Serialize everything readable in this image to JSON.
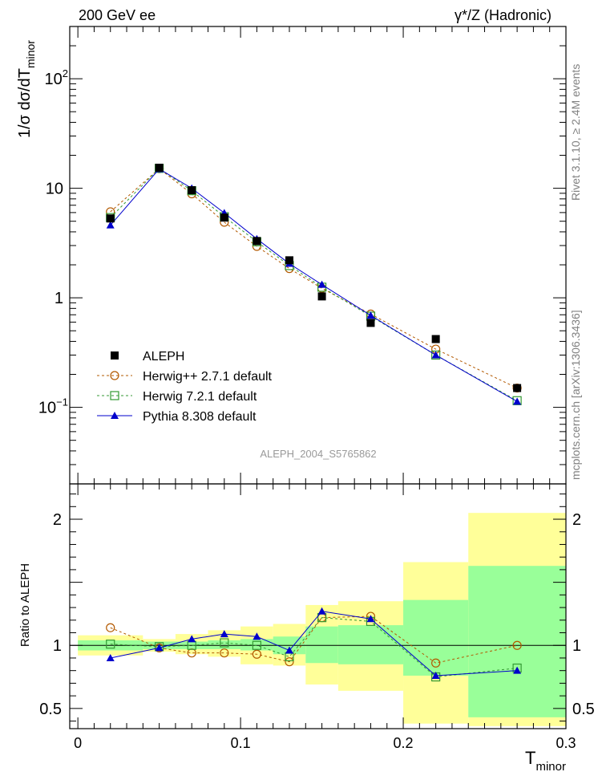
{
  "header": {
    "energy_label": "200 GeV ee",
    "process_label": "γ*/Z (Hadronic)",
    "side_label_top": "Rivet 3.1.10, ≥ 2.4M events",
    "side_label_bottom": "mcplots.cern.ch [arXiv:1306.3436]",
    "analysis_label": "ALEPH_2004_S5765862"
  },
  "chart_data": [
    {
      "type": "scatter",
      "ylabel": "1/σ dσ/dT minor",
      "ylabel_parts": {
        "main": "1/σ  dσ/dT",
        "sub": "minor"
      },
      "yscale": "log",
      "ylim": [
        0.02,
        300
      ],
      "xlim": [
        -0.005,
        0.3
      ],
      "yticks": [
        {
          "v": 0.1,
          "label": "10",
          "sup": "−1"
        },
        {
          "v": 1,
          "label": "1",
          "sup": ""
        },
        {
          "v": 10,
          "label": "10",
          "sup": ""
        },
        {
          "v": 100,
          "label": "10",
          "sup": "2"
        }
      ],
      "legend_position": "lower-left",
      "series": [
        {
          "name": "ALEPH",
          "color": "#000000",
          "marker": "square-filled",
          "line": "none",
          "x": [
            0.02,
            0.05,
            0.07,
            0.09,
            0.11,
            0.13,
            0.15,
            0.18,
            0.22,
            0.27
          ],
          "y": [
            5.3,
            15.4,
            9.6,
            5.4,
            3.3,
            2.2,
            1.03,
            0.59,
            0.42,
            0.15
          ]
        },
        {
          "name": "Herwig++ 2.7.1 default",
          "color": "#b35900",
          "marker": "circle-open",
          "line": "dashed",
          "x": [
            0.02,
            0.05,
            0.07,
            0.09,
            0.11,
            0.13,
            0.15,
            0.18,
            0.22,
            0.27
          ],
          "y": [
            6.1,
            15.1,
            8.9,
            4.9,
            2.95,
            1.85,
            1.22,
            0.71,
            0.34,
            0.15
          ]
        },
        {
          "name": "Herwig 7.2.1 default",
          "color": "#339933",
          "marker": "square-open",
          "line": "dashed",
          "x": [
            0.02,
            0.05,
            0.07,
            0.09,
            0.11,
            0.13,
            0.15,
            0.18,
            0.22,
            0.27
          ],
          "y": [
            5.4,
            15.2,
            9.5,
            5.5,
            3.25,
            1.97,
            1.25,
            0.68,
            0.3,
            0.115
          ]
        },
        {
          "name": "Pythia 8.308 default",
          "color": "#0000cc",
          "marker": "triangle-filled",
          "line": "solid",
          "x": [
            0.02,
            0.05,
            0.07,
            0.09,
            0.11,
            0.13,
            0.15,
            0.18,
            0.22,
            0.27
          ],
          "y": [
            4.6,
            15.0,
            10.0,
            5.95,
            3.45,
            2.05,
            1.32,
            0.69,
            0.3,
            0.113
          ]
        }
      ]
    },
    {
      "type": "scatter",
      "ylabel": "Ratio to ALEPH",
      "xlabel": "T minor",
      "xlabel_parts": {
        "main": "T",
        "sub": "minor"
      },
      "ylim": [
        0.34,
        2.28
      ],
      "xlim": [
        -0.005,
        0.3
      ],
      "xticks": [
        {
          "v": 0,
          "label": "0"
        },
        {
          "v": 0.1,
          "label": "0.1"
        },
        {
          "v": 0.2,
          "label": "0.2"
        },
        {
          "v": 0.3,
          "label": "0.3"
        }
      ],
      "yticks": [
        {
          "v": 0.5,
          "label": "0.5"
        },
        {
          "v": 1,
          "label": "1"
        },
        {
          "v": 2,
          "label": "2"
        }
      ],
      "uncertainty_bands": {
        "bins": [
          [
            0.0,
            0.04
          ],
          [
            0.04,
            0.06
          ],
          [
            0.06,
            0.08
          ],
          [
            0.08,
            0.1
          ],
          [
            0.1,
            0.12
          ],
          [
            0.12,
            0.14
          ],
          [
            0.14,
            0.16
          ],
          [
            0.16,
            0.2
          ],
          [
            0.2,
            0.24
          ],
          [
            0.24,
            0.3
          ]
        ],
        "stat_low": [
          0.96,
          0.97,
          0.97,
          0.97,
          0.96,
          0.93,
          0.86,
          0.85,
          0.76,
          0.43
        ],
        "stat_high": [
          1.04,
          1.03,
          1.03,
          1.04,
          1.05,
          1.07,
          1.15,
          1.16,
          1.36,
          1.63
        ],
        "total_low": [
          0.92,
          0.95,
          0.93,
          0.91,
          0.85,
          0.84,
          0.69,
          0.64,
          0.38,
          0.36
        ],
        "total_high": [
          1.08,
          1.05,
          1.09,
          1.12,
          1.15,
          1.17,
          1.32,
          1.35,
          1.66,
          2.05
        ],
        "stat_color": "#99ff99",
        "total_color": "#ffff99"
      },
      "series": [
        {
          "name": "Herwig++ 2.7.1 default",
          "color": "#b35900",
          "marker": "circle-open",
          "line": "dashed",
          "x": [
            0.02,
            0.05,
            0.07,
            0.09,
            0.11,
            0.13,
            0.15,
            0.18,
            0.22,
            0.27
          ],
          "y": [
            1.14,
            0.98,
            0.94,
            0.94,
            0.93,
            0.87,
            1.22,
            1.23,
            0.86,
            1.0
          ]
        },
        {
          "name": "Herwig 7.2.1 default",
          "color": "#339933",
          "marker": "square-open",
          "line": "dashed",
          "x": [
            0.02,
            0.05,
            0.07,
            0.09,
            0.11,
            0.13,
            0.15,
            0.18,
            0.22,
            0.27
          ],
          "y": [
            1.01,
            0.99,
            1.0,
            1.02,
            1.0,
            0.91,
            1.22,
            1.19,
            0.75,
            0.82
          ]
        },
        {
          "name": "Pythia 8.308 default",
          "color": "#0000cc",
          "marker": "triangle-filled",
          "line": "solid",
          "x": [
            0.02,
            0.05,
            0.07,
            0.09,
            0.11,
            0.13,
            0.15,
            0.18,
            0.22,
            0.27
          ],
          "y": [
            0.9,
            0.98,
            1.05,
            1.09,
            1.07,
            0.96,
            1.27,
            1.21,
            0.76,
            0.8
          ]
        }
      ]
    }
  ]
}
